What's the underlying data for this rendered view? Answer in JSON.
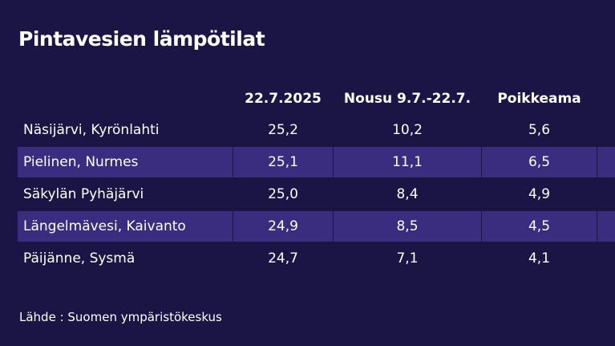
{
  "header": {
    "title": "Pintavesien lämpötilat"
  },
  "table": {
    "columns": [
      "22.7.2025",
      "Nousu 9.7.-22.7.",
      "Poikkeama"
    ],
    "rows": [
      [
        "Näsijärvi, Kyrönlahti",
        "25,2",
        "10,2",
        "5,6"
      ],
      [
        "Pielinen, Nurmes",
        "25,1",
        "11,1",
        "6,5"
      ],
      [
        "Säkylän Pyhäjärvi",
        "25,0",
        "8,4",
        "4,9"
      ],
      [
        "Längelmävesi, Kaivanto",
        "24,9",
        "8,5",
        "4,5"
      ],
      [
        "Päijänne, Sysmä",
        "24,7",
        "7,1",
        "4,1"
      ]
    ]
  },
  "footer": {
    "source": "Lähde : Suomen ympäristökeskus"
  }
}
